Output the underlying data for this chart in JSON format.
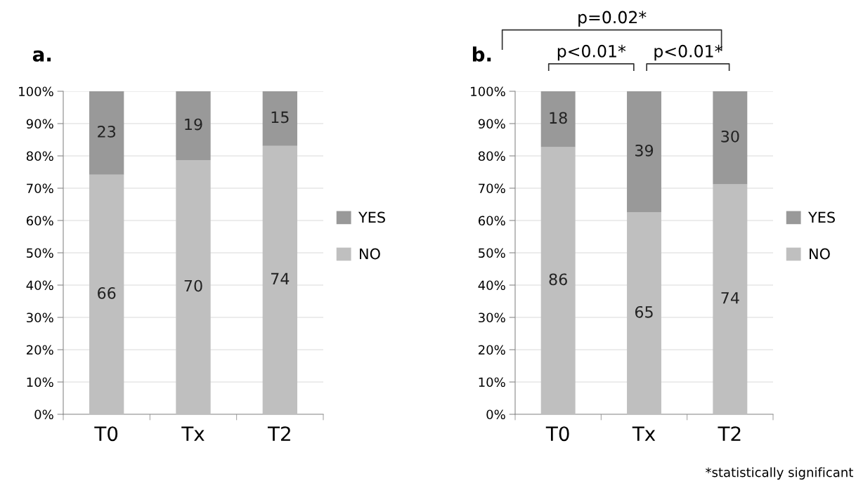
{
  "chart_data": [
    {
      "type": "bar",
      "title": "a.",
      "stacked": true,
      "categories": [
        "T0",
        "Tx",
        "T2"
      ],
      "series": [
        {
          "name": "NO",
          "color": "#bfbfbf",
          "values": [
            74.2,
            78.7,
            83.1
          ]
        },
        {
          "name": "YES",
          "color": "#999999",
          "values": [
            25.8,
            21.3,
            16.9
          ]
        }
      ],
      "ylim": [
        0,
        100
      ],
      "yticks": [
        {
          "value": 0,
          "label": "0%"
        },
        {
          "value": 10,
          "label": "10%"
        },
        {
          "value": 20,
          "label": "20%"
        },
        {
          "value": 30,
          "label": "30%"
        },
        {
          "value": 40,
          "label": "40%"
        },
        {
          "value": 50,
          "label": "50%"
        },
        {
          "value": 60,
          "label": "60%"
        },
        {
          "value": 70,
          "label": "70%"
        },
        {
          "value": 80,
          "label": "80%"
        },
        {
          "value": 90,
          "label": "90%"
        },
        {
          "value": 100,
          "label": "100%"
        }
      ],
      "grid": "y",
      "legend": "right",
      "annotations": [
        "66",
        "70",
        "74",
        "23",
        "19",
        "15"
      ]
    },
    {
      "type": "bar",
      "title": "b.",
      "stacked": true,
      "categories": [
        "T0",
        "Tx",
        "T2"
      ],
      "series": [
        {
          "name": "NO",
          "color": "#bfbfbf",
          "values": [
            82.7,
            62.5,
            71.2
          ]
        },
        {
          "name": "YES",
          "color": "#999999",
          "values": [
            17.3,
            37.5,
            28.8
          ]
        }
      ],
      "ylim": [
        0,
        100
      ],
      "yticks": [
        {
          "value": 0,
          "label": "0%"
        },
        {
          "value": 10,
          "label": "10%"
        },
        {
          "value": 20,
          "label": "20%"
        },
        {
          "value": 30,
          "label": "30%"
        },
        {
          "value": 40,
          "label": "40%"
        },
        {
          "value": 50,
          "label": "50%"
        },
        {
          "value": 60,
          "label": "60%"
        },
        {
          "value": 70,
          "label": "70%"
        },
        {
          "value": 80,
          "label": "80%"
        },
        {
          "value": 90,
          "label": "90%"
        },
        {
          "value": 100,
          "label": "100%"
        }
      ],
      "grid": "y",
      "legend": "right",
      "annotations": [
        "86",
        "65",
        "74",
        "18",
        "39",
        "30",
        "p=0.02*",
        "p<0.01*",
        "p<0.01*",
        "*statistically significant"
      ]
    }
  ]
}
